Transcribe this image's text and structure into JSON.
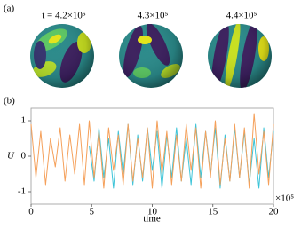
{
  "panel_a": {
    "label": "(a)",
    "titles": [
      "t = 4.2×10⁵",
      "4.3×10⁵",
      "4.4×10⁵"
    ]
  },
  "chart_data": {
    "type": "line",
    "panel_label": "(b)",
    "xlabel": "time",
    "ylabel": "U",
    "x_multiplier": "×10⁵",
    "x": [
      0,
      0.4,
      0.8,
      1.2,
      1.6,
      2,
      2.4,
      2.8,
      3.2,
      3.6,
      4,
      4.4,
      4.8,
      5.2,
      5.6,
      6,
      6.4,
      6.8,
      7.2,
      7.6,
      8,
      8.4,
      8.8,
      9.2,
      9.6,
      10,
      10.4,
      10.8,
      11.2,
      11.6,
      12,
      12.4,
      12.8,
      13.2,
      13.6,
      14,
      14.4,
      14.8,
      15.2,
      15.6,
      16,
      16.4,
      16.8,
      17.2,
      17.6,
      18,
      18.4,
      18.8,
      19.2,
      19.6,
      20
    ],
    "series": [
      {
        "color": "#3cc4d8",
        "values": [
          null,
          null,
          null,
          null,
          null,
          null,
          null,
          null,
          null,
          null,
          null,
          null,
          0.3,
          -0.7,
          0.8,
          -0.6,
          0.5,
          -0.9,
          0.7,
          -0.5,
          0.9,
          -0.8,
          0.6,
          -0.7,
          0.8,
          -0.4,
          0.7,
          -0.9,
          0.6,
          -0.6,
          0.8,
          -0.7,
          0.5,
          -0.8,
          0.9,
          -0.6,
          0.7,
          -0.5,
          0.8,
          -0.9,
          0.6,
          -0.7,
          0.8,
          -0.6,
          0.7,
          -0.8,
          0.5,
          -0.9,
          0.8,
          -0.6,
          0.7
        ]
      },
      {
        "color": "#f5a05a",
        "values": [
          0.9,
          -0.6,
          0.7,
          -0.8,
          0.5,
          -0.3,
          0.8,
          -0.7,
          0.6,
          -0.5,
          0.9,
          -0.8,
          1.0,
          -0.6,
          0.7,
          -0.9,
          0.8,
          -0.4,
          0.6,
          -0.8,
          0.9,
          -0.7,
          0.5,
          -0.6,
          0.8,
          -0.9,
          1.0,
          -0.5,
          0.7,
          -0.8,
          0.6,
          -0.7,
          0.9,
          -0.4,
          0.8,
          -0.9,
          0.7,
          -0.6,
          1.0,
          -0.8,
          0.5,
          -0.7,
          0.9,
          -0.6,
          0.8,
          -0.9,
          1.2,
          -0.5,
          0.7,
          -0.8,
          0.9
        ]
      }
    ],
    "xlim": [
      0,
      20
    ],
    "ylim": [
      -1.35,
      1.35
    ],
    "xticks": [
      0,
      5,
      10,
      15,
      20
    ],
    "yticks": [
      -1,
      0,
      1
    ]
  }
}
